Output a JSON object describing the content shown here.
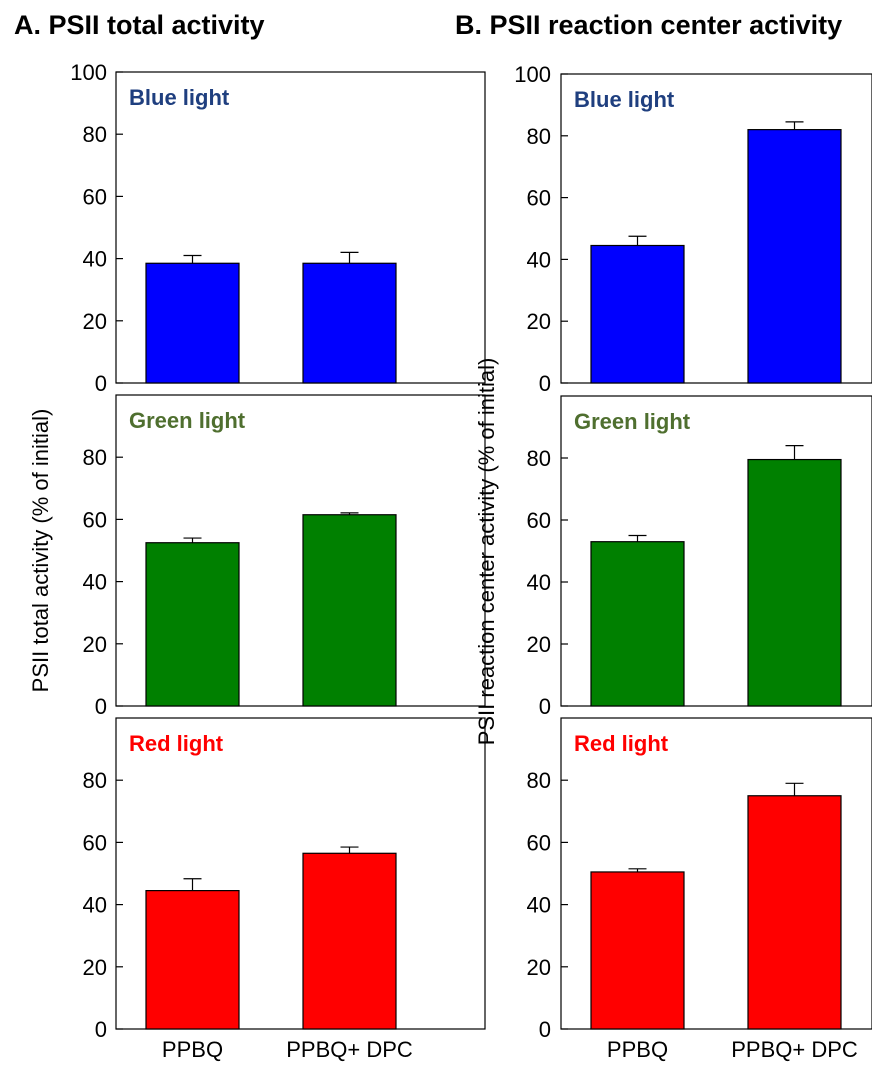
{
  "figure": {
    "panel_a_title": "A. PSII total activity",
    "panel_b_title": "B. PSII reaction center activity"
  },
  "chart_data": [
    {
      "type": "bar",
      "title": "A. PSII total activity",
      "ylabel": "PSII total activity (% of initial)",
      "categories": [
        "PPBQ",
        "PPBQ+ DPC"
      ],
      "ylim": [
        0,
        100
      ],
      "subplots": [
        {
          "label": "Blue light",
          "color": "#0000ff",
          "label_color": "#1f3f7f",
          "yticks": [
            0,
            20,
            40,
            60,
            80,
            100
          ],
          "values": [
            38.5,
            38.5
          ],
          "errors": [
            2.5,
            3.5
          ]
        },
        {
          "label": "Green light",
          "color": "#008000",
          "label_color": "#4f6f2f",
          "yticks": [
            0,
            20,
            40,
            60,
            80
          ],
          "values": [
            52.5,
            61.5
          ],
          "errors": [
            1.5,
            0.6
          ]
        },
        {
          "label": "Red light",
          "color": "#ff0000",
          "label_color": "#ff0000",
          "yticks": [
            0,
            20,
            40,
            60,
            80
          ],
          "values": [
            44.5,
            56.5
          ],
          "errors": [
            3.8,
            2.0
          ]
        }
      ]
    },
    {
      "type": "bar",
      "title": "B. PSII reaction center activity",
      "ylabel": "PSII reaction center activity (% of initial)",
      "categories": [
        "PPBQ",
        "PPBQ+ DPC"
      ],
      "ylim": [
        0,
        100
      ],
      "subplots": [
        {
          "label": "Blue light",
          "color": "#0000ff",
          "label_color": "#1f3f7f",
          "yticks": [
            0,
            20,
            40,
            60,
            80,
            100
          ],
          "values": [
            44.5,
            82
          ],
          "errors": [
            3.0,
            2.5
          ]
        },
        {
          "label": "Green light",
          "color": "#008000",
          "label_color": "#4f6f2f",
          "yticks": [
            0,
            20,
            40,
            60,
            80
          ],
          "values": [
            53,
            79.5
          ],
          "errors": [
            2.0,
            4.5
          ]
        },
        {
          "label": "Red light",
          "color": "#ff0000",
          "label_color": "#ff0000",
          "yticks": [
            0,
            20,
            40,
            60,
            80
          ],
          "values": [
            50.5,
            75
          ],
          "errors": [
            1.0,
            4.0
          ]
        }
      ]
    }
  ]
}
